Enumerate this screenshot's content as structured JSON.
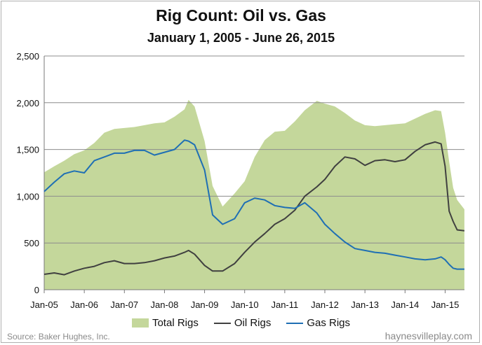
{
  "header": {
    "title": "Rig Count: Oil vs. Gas",
    "subtitle": "January 1, 2005 - June 26, 2015"
  },
  "footer": {
    "source": "Source: Baker Hughes, Inc.",
    "site": "haynesvilleplay.com"
  },
  "chart_data": {
    "type": "area",
    "title": "Rig Count: Oil vs. Gas",
    "subtitle": "January 1, 2005 - June 26, 2015",
    "xlabel": "",
    "ylabel": "",
    "ylim": [
      0,
      2500
    ],
    "xlim": [
      "2005-01-01",
      "2015-06-26"
    ],
    "yticks": [
      {
        "value": 0,
        "label": "0"
      },
      {
        "value": 500,
        "label": "500"
      },
      {
        "value": 1000,
        "label": "1,000"
      },
      {
        "value": 1500,
        "label": "1,500"
      },
      {
        "value": 2000,
        "label": "2,000"
      },
      {
        "value": 2500,
        "label": "2,500"
      }
    ],
    "xticks": [
      "Jan-05",
      "Jan-06",
      "Jan-07",
      "Jan-08",
      "Jan-09",
      "Jan-10",
      "Jan-11",
      "Jan-12",
      "Jan-13",
      "Jan-14",
      "Jan-15"
    ],
    "grid": true,
    "legend": "bottom",
    "x": [
      2005.0,
      2005.25,
      2005.5,
      2005.75,
      2006.0,
      2006.25,
      2006.5,
      2006.75,
      2007.0,
      2007.25,
      2007.5,
      2007.75,
      2008.0,
      2008.25,
      2008.5,
      2008.6,
      2008.75,
      2009.0,
      2009.2,
      2009.45,
      2009.75,
      2010.0,
      2010.25,
      2010.5,
      2010.75,
      2011.0,
      2011.25,
      2011.5,
      2011.8,
      2012.0,
      2012.25,
      2012.5,
      2012.75,
      2013.0,
      2013.25,
      2013.5,
      2013.75,
      2014.0,
      2014.25,
      2014.5,
      2014.75,
      2014.9,
      2015.0,
      2015.1,
      2015.2,
      2015.3,
      2015.48
    ],
    "series": [
      {
        "name": "Total Rigs",
        "color": "#c4d79b",
        "values": [
          1255,
          1320,
          1380,
          1450,
          1490,
          1570,
          1680,
          1720,
          1730,
          1740,
          1760,
          1780,
          1790,
          1850,
          1930,
          2030,
          1960,
          1590,
          1110,
          890,
          1030,
          1160,
          1420,
          1600,
          1690,
          1700,
          1800,
          1920,
          2020,
          1990,
          1960,
          1890,
          1810,
          1760,
          1750,
          1760,
          1770,
          1780,
          1830,
          1880,
          1920,
          1910,
          1680,
          1370,
          1090,
          960,
          860
        ]
      },
      {
        "name": "Oil Rigs",
        "color": "#404040",
        "values": [
          165,
          180,
          160,
          200,
          230,
          250,
          290,
          310,
          280,
          280,
          290,
          310,
          340,
          360,
          400,
          420,
          380,
          260,
          200,
          200,
          280,
          400,
          510,
          600,
          700,
          760,
          850,
          1000,
          1100,
          1180,
          1320,
          1420,
          1400,
          1330,
          1380,
          1390,
          1370,
          1390,
          1480,
          1550,
          1580,
          1560,
          1320,
          840,
          730,
          640,
          630
        ]
      },
      {
        "name": "Gas Rigs",
        "color": "#1f6fb4",
        "values": [
          1050,
          1150,
          1240,
          1270,
          1250,
          1380,
          1420,
          1460,
          1460,
          1490,
          1490,
          1440,
          1470,
          1500,
          1600,
          1590,
          1550,
          1280,
          800,
          700,
          760,
          930,
          980,
          960,
          900,
          880,
          870,
          930,
          820,
          700,
          600,
          510,
          440,
          420,
          400,
          390,
          370,
          350,
          330,
          320,
          330,
          350,
          320,
          270,
          230,
          220,
          220
        ]
      }
    ]
  }
}
